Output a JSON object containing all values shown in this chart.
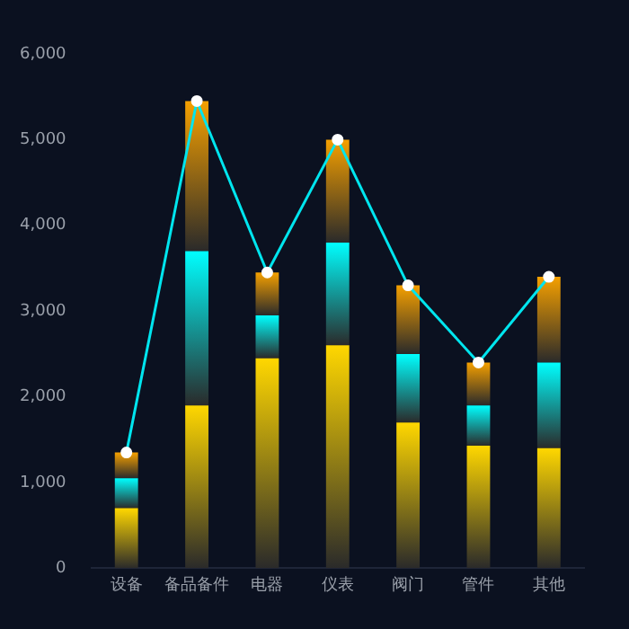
{
  "chart_data": {
    "type": "bar",
    "stacked": true,
    "categories": [
      "设备",
      "备品备件",
      "电器",
      "仪表",
      "阀门",
      "管件",
      "其他"
    ],
    "series": [
      {
        "color": "#ffd700",
        "values": [
          700,
          1900,
          2450,
          2600,
          1700,
          1430,
          1400
        ]
      },
      {
        "color": "#00ffff",
        "values": [
          350,
          1800,
          500,
          1200,
          800,
          470,
          1000
        ]
      },
      {
        "color": "#f5a000",
        "values": [
          300,
          1750,
          500,
          1200,
          800,
          500,
          1000
        ]
      },
      {
        "type": "line",
        "color": "#00e5ee",
        "marker": "circle",
        "values": [
          1350,
          5450,
          3450,
          5000,
          3300,
          2400,
          3400
        ]
      }
    ],
    "ylim": [
      0,
      6000
    ],
    "yticks": [
      0,
      {
        "value": 1000,
        "label": "1,000"
      },
      {
        "value": 2000,
        "label": "2,000"
      },
      {
        "value": 3000,
        "label": "3,000"
      },
      {
        "value": 4000,
        "label": "4,000"
      },
      {
        "value": 5000,
        "label": "5,000"
      },
      {
        "value": 6000,
        "label": "6,000"
      }
    ],
    "grid": false,
    "legend": false
  }
}
